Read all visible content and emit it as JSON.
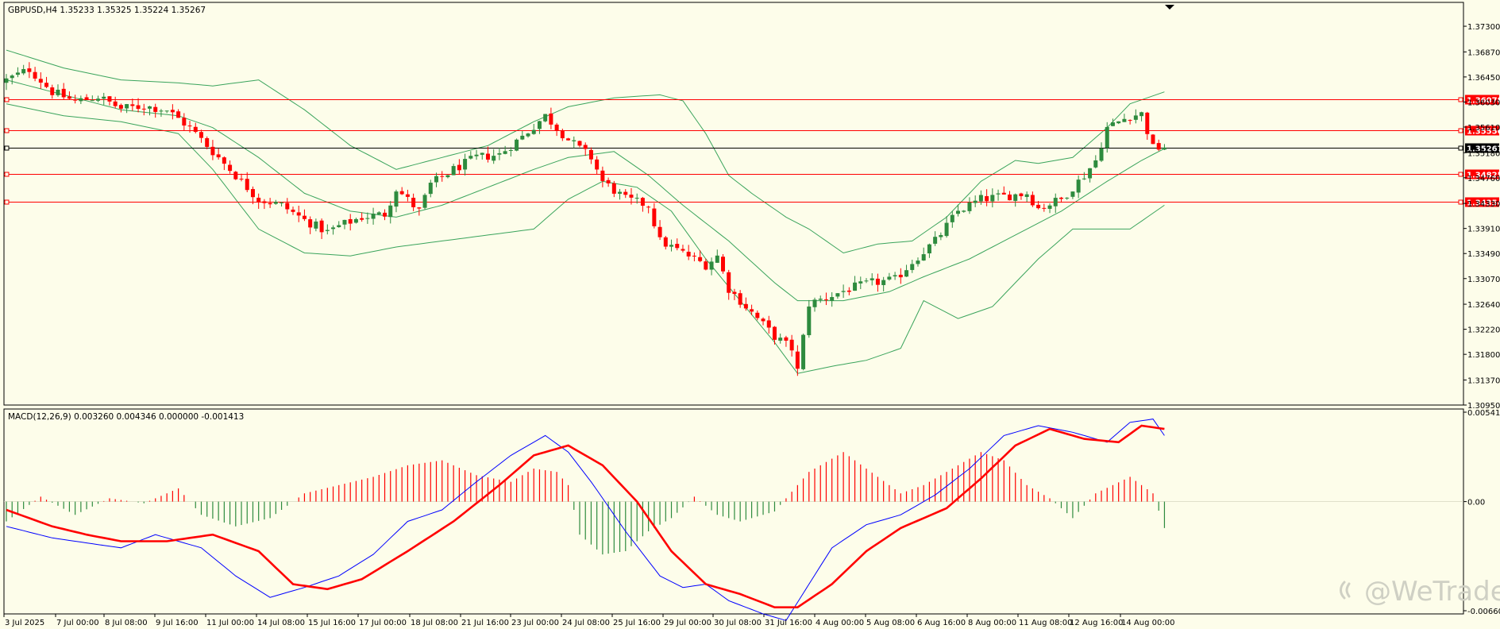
{
  "window": {
    "symbol_header": "GBPUSD,H4 1.35233 1.35325 1.35224 1.35267"
  },
  "watermark": {
    "text": "@WeTrade",
    "icon": "wetrade-logo-icon"
  },
  "colors": {
    "background": "#fdfdea",
    "bull": "#2e8b3e",
    "bear": "#ff0000",
    "bollinger": "#3aa45c",
    "level_line": "#ff0000",
    "current_price_line": "#000000",
    "macd_line": "#0000ff",
    "signal_line": "#ff0000",
    "hist_positive": "#ff0000",
    "hist_negative": "#2e8b3e"
  },
  "chart_data": [
    {
      "type": "candlestick",
      "title": "GBPUSD,H4",
      "ohlc_last": {
        "open": 1.35233,
        "high": 1.35325,
        "low": 1.35224,
        "close": 1.35267
      },
      "ylim": [
        1.3095,
        1.377
      ],
      "y_ticks": [
        "1.37300",
        "1.36870",
        "1.36450",
        "1.36030",
        "1.35610",
        "1.35180",
        "1.34760",
        "1.34330",
        "1.33910",
        "1.33490",
        "1.33070",
        "1.32640",
        "1.32220",
        "1.31800",
        "1.31370",
        "1.30950"
      ],
      "x_tick_labels": [
        "3 Jul 2025",
        "7 Jul 00:00",
        "8 Jul 08:00",
        "9 Jul 16:00",
        "11 Jul 00:00",
        "14 Jul 08:00",
        "15 Jul 16:00",
        "17 Jul 00:00",
        "18 Jul 08:00",
        "21 Jul 16:00",
        "23 Jul 00:00",
        "24 Jul 08:00",
        "25 Jul 16:00",
        "29 Jul 00:00",
        "30 Jul 08:00",
        "31 Jul 16:00",
        "4 Aug 00:00",
        "5 Aug 08:00",
        "6 Aug 16:00",
        "8 Aug 00:00",
        "11 Aug 08:00",
        "12 Aug 16:00",
        "14 Aug 00:00"
      ],
      "price_close_path": [
        [
          0,
          1.364
        ],
        [
          4,
          1.3658
        ],
        [
          8,
          1.362
        ],
        [
          12,
          1.3604
        ],
        [
          16,
          1.3612
        ],
        [
          20,
          1.3592
        ],
        [
          24,
          1.3596
        ],
        [
          28,
          1.359
        ],
        [
          32,
          1.356
        ],
        [
          36,
          1.352
        ],
        [
          40,
          1.348
        ],
        [
          44,
          1.344
        ],
        [
          48,
          1.343
        ],
        [
          52,
          1.3405
        ],
        [
          56,
          1.3385
        ],
        [
          58,
          1.3395
        ],
        [
          62,
          1.341
        ],
        [
          66,
          1.3415
        ],
        [
          68,
          1.3458
        ],
        [
          72,
          1.342
        ],
        [
          74,
          1.3465
        ],
        [
          78,
          1.349
        ],
        [
          82,
          1.351
        ],
        [
          86,
          1.3515
        ],
        [
          90,
          1.3545
        ],
        [
          94,
          1.358
        ],
        [
          98,
          1.354
        ],
        [
          102,
          1.351
        ],
        [
          104,
          1.347
        ],
        [
          108,
          1.344
        ],
        [
          112,
          1.343
        ],
        [
          114,
          1.337
        ],
        [
          118,
          1.335
        ],
        [
          122,
          1.333
        ],
        [
          124,
          1.3345
        ],
        [
          126,
          1.329
        ],
        [
          130,
          1.325
        ],
        [
          134,
          1.321
        ],
        [
          137,
          1.319
        ],
        [
          138,
          1.3152
        ],
        [
          140,
          1.3265
        ],
        [
          143,
          1.3275
        ],
        [
          147,
          1.329
        ],
        [
          151,
          1.33
        ],
        [
          155,
          1.3305
        ],
        [
          158,
          1.3335
        ],
        [
          162,
          1.337
        ],
        [
          166,
          1.342
        ],
        [
          170,
          1.344
        ],
        [
          174,
          1.3445
        ],
        [
          178,
          1.345
        ],
        [
          180,
          1.3425
        ],
        [
          184,
          1.344
        ],
        [
          188,
          1.348
        ],
        [
          190,
          1.3505
        ],
        [
          192,
          1.356
        ],
        [
          196,
          1.358
        ],
        [
          198,
          1.3583
        ],
        [
          200,
          1.3526
        ],
        [
          202,
          1.3527
        ]
      ],
      "bollinger_bands": {
        "period_note": "Bollinger Bands",
        "upper": [
          [
            0,
            1.369
          ],
          [
            10,
            1.366
          ],
          [
            20,
            1.364
          ],
          [
            30,
            1.3635
          ],
          [
            36,
            1.363
          ],
          [
            44,
            1.364
          ],
          [
            52,
            1.359
          ],
          [
            60,
            1.353
          ],
          [
            68,
            1.349
          ],
          [
            76,
            1.351
          ],
          [
            84,
            1.353
          ],
          [
            92,
            1.357
          ],
          [
            98,
            1.3595
          ],
          [
            106,
            1.361
          ],
          [
            114,
            1.3615
          ],
          [
            118,
            1.3605
          ],
          [
            122,
            1.355
          ],
          [
            126,
            1.348
          ],
          [
            130,
            1.345
          ],
          [
            136,
            1.341
          ],
          [
            140,
            1.339
          ],
          [
            146,
            1.335
          ],
          [
            152,
            1.3365
          ],
          [
            158,
            1.337
          ],
          [
            164,
            1.341
          ],
          [
            170,
            1.347
          ],
          [
            176,
            1.3505
          ],
          [
            180,
            1.35
          ],
          [
            186,
            1.351
          ],
          [
            192,
            1.356
          ],
          [
            196,
            1.36
          ],
          [
            202,
            1.362
          ]
        ],
        "middle": [
          [
            0,
            1.364
          ],
          [
            10,
            1.3615
          ],
          [
            20,
            1.359
          ],
          [
            30,
            1.358
          ],
          [
            36,
            1.356
          ],
          [
            44,
            1.351
          ],
          [
            52,
            1.345
          ],
          [
            60,
            1.342
          ],
          [
            68,
            1.341
          ],
          [
            76,
            1.343
          ],
          [
            84,
            1.346
          ],
          [
            92,
            1.349
          ],
          [
            98,
            1.351
          ],
          [
            106,
            1.352
          ],
          [
            112,
            1.348
          ],
          [
            118,
            1.343
          ],
          [
            126,
            1.337
          ],
          [
            134,
            1.33
          ],
          [
            138,
            1.327
          ],
          [
            146,
            1.327
          ],
          [
            154,
            1.3285
          ],
          [
            160,
            1.331
          ],
          [
            168,
            1.334
          ],
          [
            176,
            1.338
          ],
          [
            184,
            1.342
          ],
          [
            192,
            1.347
          ],
          [
            198,
            1.3505
          ],
          [
            202,
            1.3525
          ]
        ],
        "lower": [
          [
            0,
            1.36
          ],
          [
            10,
            1.358
          ],
          [
            20,
            1.357
          ],
          [
            30,
            1.355
          ],
          [
            36,
            1.349
          ],
          [
            44,
            1.339
          ],
          [
            52,
            1.335
          ],
          [
            60,
            1.3345
          ],
          [
            68,
            1.336
          ],
          [
            76,
            1.337
          ],
          [
            84,
            1.338
          ],
          [
            92,
            1.339
          ],
          [
            98,
            1.344
          ],
          [
            104,
            1.347
          ],
          [
            110,
            1.346
          ],
          [
            116,
            1.342
          ],
          [
            122,
            1.334
          ],
          [
            128,
            1.327
          ],
          [
            134,
            1.32
          ],
          [
            138,
            1.3148
          ],
          [
            144,
            1.316
          ],
          [
            150,
            1.317
          ],
          [
            156,
            1.319
          ],
          [
            160,
            1.327
          ],
          [
            166,
            1.324
          ],
          [
            172,
            1.326
          ],
          [
            180,
            1.334
          ],
          [
            186,
            1.339
          ],
          [
            190,
            1.339
          ],
          [
            196,
            1.339
          ],
          [
            202,
            1.343
          ]
        ]
      },
      "horizontal_levels": [
        {
          "label": "1.36078",
          "value": 1.36078,
          "color": "#ff0000"
        },
        {
          "label": "1.35556",
          "value": 1.35556,
          "color": "#ff0000"
        },
        {
          "label": "1.35267",
          "value": 1.35267,
          "color": "#000000"
        },
        {
          "label": "1.34825",
          "value": 1.34825,
          "color": "#ff0000"
        },
        {
          "label": "1.34354",
          "value": 1.34354,
          "color": "#ff0000"
        }
      ]
    },
    {
      "type": "line",
      "title": "MACD(12,26,9) 0.003260 0.004346 0.000000 -0.001413",
      "ylim": [
        -0.006609,
        0.005416
      ],
      "y_ticks": [
        "0.005416",
        "0.00",
        "-0.006609"
      ],
      "series": [
        {
          "name": "MACD",
          "color": "#0000ff",
          "points": [
            [
              0,
              -0.0015
            ],
            [
              8,
              -0.0022
            ],
            [
              14,
              -0.0025
            ],
            [
              20,
              -0.0028
            ],
            [
              26,
              -0.002
            ],
            [
              34,
              -0.0028
            ],
            [
              40,
              -0.0045
            ],
            [
              46,
              -0.0058
            ],
            [
              52,
              -0.0052
            ],
            [
              58,
              -0.0045
            ],
            [
              64,
              -0.0032
            ],
            [
              70,
              -0.0012
            ],
            [
              76,
              -0.0005
            ],
            [
              82,
              0.0012
            ],
            [
              88,
              0.0028
            ],
            [
              94,
              0.004
            ],
            [
              98,
              0.003
            ],
            [
              102,
              0.0012
            ],
            [
              108,
              -0.0018
            ],
            [
              114,
              -0.0045
            ],
            [
              118,
              -0.0052
            ],
            [
              122,
              -0.005
            ],
            [
              126,
              -0.006
            ],
            [
              132,
              -0.0068
            ],
            [
              136,
              -0.0072
            ],
            [
              140,
              -0.005
            ],
            [
              144,
              -0.0028
            ],
            [
              150,
              -0.0014
            ],
            [
              156,
              -0.0008
            ],
            [
              162,
              0.0004
            ],
            [
              168,
              0.002
            ],
            [
              174,
              0.004
            ],
            [
              180,
              0.0046
            ],
            [
              186,
              0.0042
            ],
            [
              192,
              0.0036
            ],
            [
              196,
              0.0048
            ],
            [
              200,
              0.005
            ],
            [
              202,
              0.004
            ]
          ]
        },
        {
          "name": "Signal",
          "color": "#ff0000",
          "points": [
            [
              0,
              -0.0005
            ],
            [
              8,
              -0.0015
            ],
            [
              14,
              -0.002
            ],
            [
              20,
              -0.0024
            ],
            [
              28,
              -0.0024
            ],
            [
              36,
              -0.002
            ],
            [
              44,
              -0.003
            ],
            [
              50,
              -0.005
            ],
            [
              56,
              -0.0053
            ],
            [
              62,
              -0.0047
            ],
            [
              70,
              -0.003
            ],
            [
              78,
              -0.0012
            ],
            [
              86,
              0.001
            ],
            [
              92,
              0.0028
            ],
            [
              98,
              0.0034
            ],
            [
              104,
              0.0022
            ],
            [
              110,
              0.0
            ],
            [
              116,
              -0.003
            ],
            [
              122,
              -0.005
            ],
            [
              128,
              -0.0056
            ],
            [
              134,
              -0.0064
            ],
            [
              138,
              -0.0064
            ],
            [
              144,
              -0.005
            ],
            [
              150,
              -0.003
            ],
            [
              156,
              -0.0016
            ],
            [
              164,
              -0.0004
            ],
            [
              170,
              0.0014
            ],
            [
              176,
              0.0034
            ],
            [
              182,
              0.0044
            ],
            [
              188,
              0.0038
            ],
            [
              194,
              0.0036
            ],
            [
              198,
              0.0046
            ],
            [
              202,
              0.0044
            ]
          ]
        }
      ],
      "histogram_anchor_points": [
        [
          0,
          -0.0012
        ],
        [
          6,
          0.0003
        ],
        [
          12,
          -0.0008
        ],
        [
          18,
          0.0002
        ],
        [
          24,
          -0.0001
        ],
        [
          30,
          0.0008
        ],
        [
          34,
          -0.0008
        ],
        [
          40,
          -0.0015
        ],
        [
          46,
          -0.001
        ],
        [
          52,
          0.0005
        ],
        [
          58,
          0.001
        ],
        [
          64,
          0.0015
        ],
        [
          70,
          0.0022
        ],
        [
          76,
          0.0025
        ],
        [
          82,
          0.0016
        ],
        [
          88,
          0.0012
        ],
        [
          92,
          0.002
        ],
        [
          96,
          0.0018
        ],
        [
          98,
          0.001
        ],
        [
          100,
          -0.002
        ],
        [
          104,
          -0.0032
        ],
        [
          108,
          -0.003
        ],
        [
          112,
          -0.0018
        ],
        [
          116,
          -0.001
        ],
        [
          120,
          0.0003
        ],
        [
          124,
          -0.0008
        ],
        [
          128,
          -0.0012
        ],
        [
          134,
          -0.0006
        ],
        [
          140,
          0.0018
        ],
        [
          146,
          0.003
        ],
        [
          152,
          0.0015
        ],
        [
          156,
          0.0005
        ],
        [
          160,
          0.001
        ],
        [
          166,
          0.0022
        ],
        [
          170,
          0.003
        ],
        [
          174,
          0.0025
        ],
        [
          178,
          0.001
        ],
        [
          182,
          0.0002
        ],
        [
          186,
          -0.001
        ],
        [
          190,
          0.0005
        ],
        [
          196,
          0.0015
        ],
        [
          200,
          0.0005
        ],
        [
          202,
          -0.0016
        ]
      ]
    }
  ]
}
